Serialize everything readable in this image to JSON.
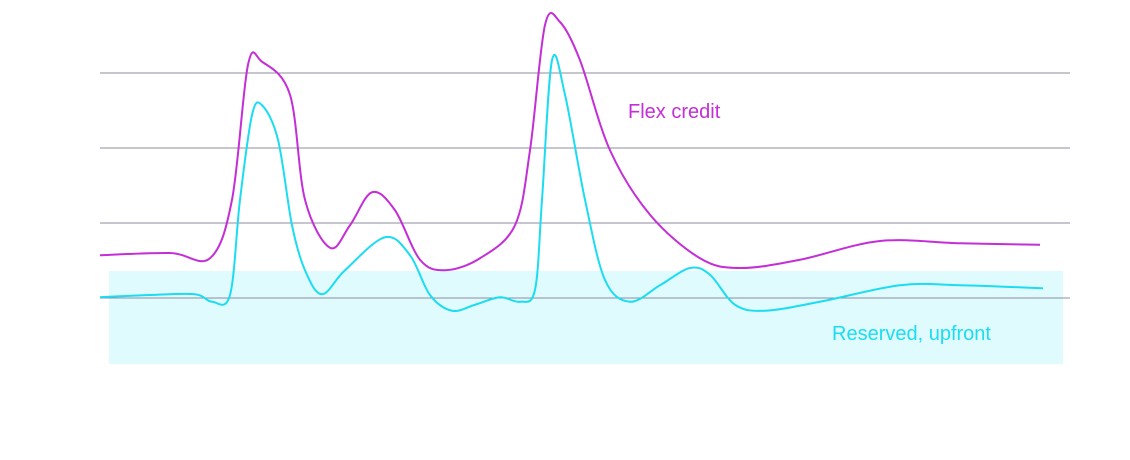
{
  "chart_data": {
    "type": "line",
    "xlim": [
      0,
      970
    ],
    "ylim": [
      -1,
      4
    ],
    "yticks": [
      0,
      1,
      2,
      3
    ],
    "grid": true,
    "series": [
      {
        "name": "Flex credit",
        "color": "#c42ed6",
        "x": [
          0,
          70,
          110,
          132,
          148,
          162,
          190,
          205,
          230,
          250,
          272,
          295,
          320,
          345,
          380,
          415,
          430,
          445,
          460,
          480,
          510,
          550,
          600,
          640,
          700,
          780,
          860,
          940
        ],
        "values": [
          0.57,
          0.6,
          0.53,
          1.31,
          3.11,
          3.15,
          2.71,
          1.31,
          0.67,
          0.97,
          1.41,
          1.17,
          0.51,
          0.37,
          0.53,
          0.97,
          1.97,
          3.64,
          3.68,
          3.17,
          1.97,
          1.11,
          0.53,
          0.4,
          0.51,
          0.76,
          0.73,
          0.71
        ]
      },
      {
        "name": "Reserved, upfront",
        "color": "#1cdcf2",
        "x": [
          0,
          50,
          95,
          112,
          130,
          140,
          152,
          162,
          178,
          192,
          205,
          222,
          245,
          285,
          310,
          330,
          352,
          375,
          400,
          420,
          435,
          442,
          452,
          465,
          485,
          505,
          530,
          560,
          590,
          610,
          635,
          665,
          720,
          800,
          860,
          943
        ],
        "values": [
          0.01,
          0.04,
          0.05,
          -0.05,
          0.04,
          1.31,
          2.44,
          2.57,
          2.11,
          0.97,
          0.37,
          0.05,
          0.37,
          0.81,
          0.57,
          0.04,
          -0.17,
          -0.09,
          0.01,
          -0.05,
          0.11,
          1.31,
          3.17,
          2.71,
          1.31,
          0.24,
          -0.05,
          0.17,
          0.4,
          0.31,
          -0.09,
          -0.17,
          -0.05,
          0.17,
          0.17,
          0.13
        ]
      }
    ]
  }
}
